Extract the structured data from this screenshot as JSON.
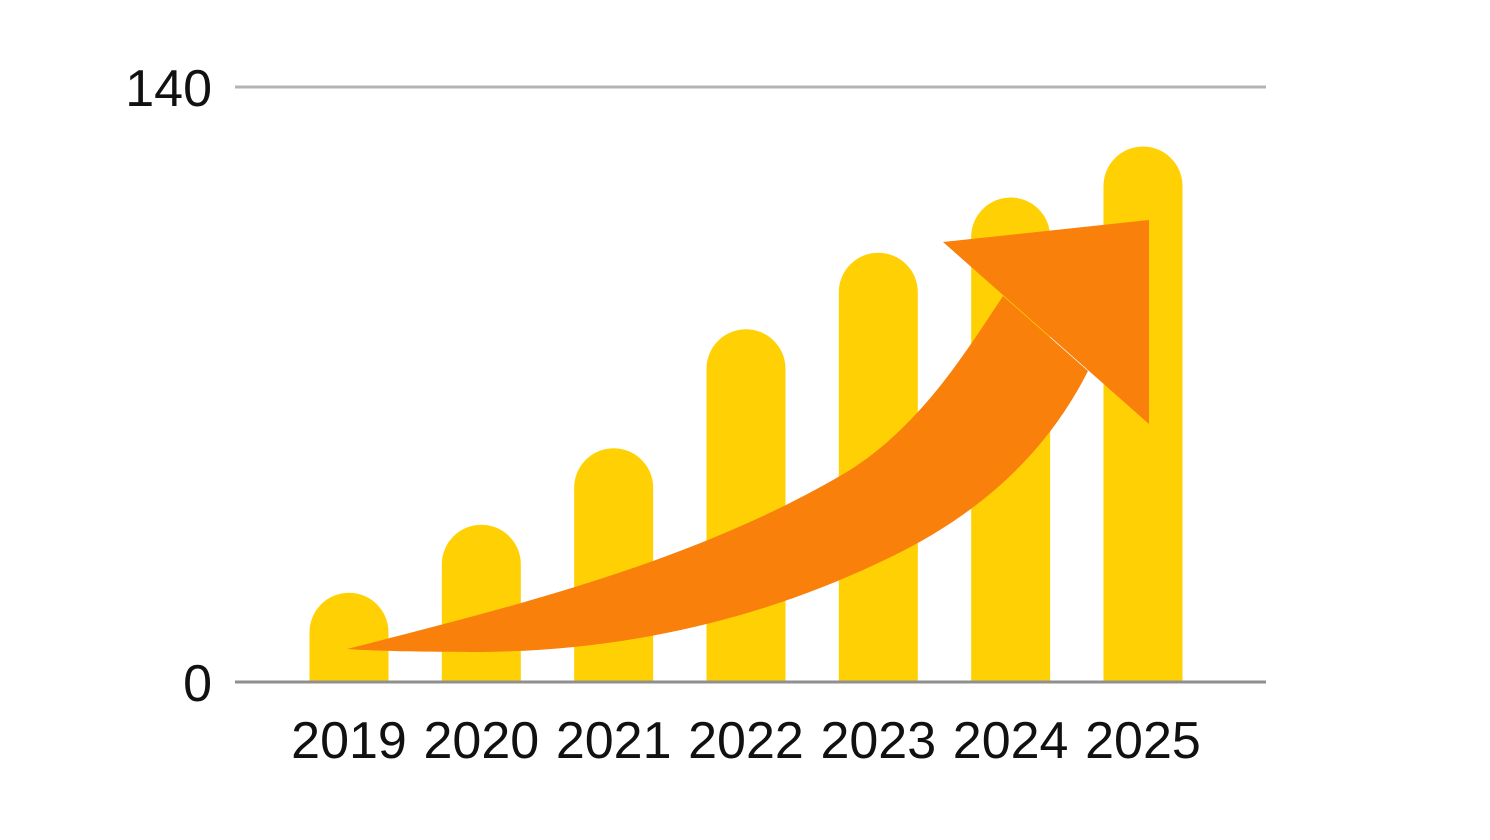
{
  "chart_data": {
    "type": "bar",
    "title": "",
    "xlabel": "",
    "ylabel": "",
    "categories": [
      "2019",
      "2020",
      "2021",
      "2022",
      "2023",
      "2024",
      "2025"
    ],
    "values": [
      21,
      37,
      55,
      83,
      101,
      114,
      126
    ],
    "ylim": [
      0,
      140
    ],
    "yticks": [
      0,
      140
    ],
    "ytick_labels": [
      "0",
      "140"
    ],
    "grid": "horizontal lines at y=0 (axis baseline) and y=140 only",
    "legend_position": "none",
    "annotations": [
      "large orange curved growth arrow sweeping up-right across the bars, tail starting thin near the 2019 bar and triangular arrowhead pointing up-right over the 2024-2025 bars"
    ]
  },
  "axis": {
    "y_top_label": "140",
    "y_bottom_label": "0"
  },
  "colors": {
    "background": "#FFFFFF",
    "bar_fill": "#FFD105",
    "arrow_fill": "#F8800B",
    "top_gridline": "#B3B3B3",
    "baseline": "#8F8F8F",
    "label_text": "#111111"
  }
}
